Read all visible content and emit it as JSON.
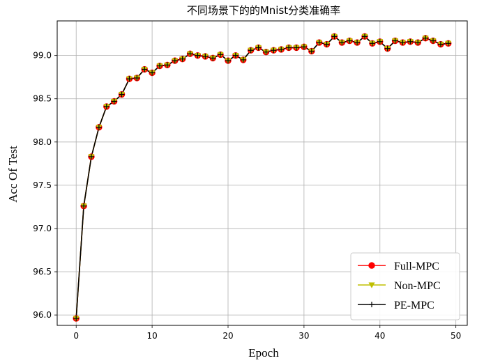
{
  "chart_data": {
    "type": "line",
    "title": "不同场景下的的Mnist分类准确率",
    "xlabel": "Epoch",
    "ylabel": "Acc Of Test",
    "xlim": [
      -2.5,
      51.5
    ],
    "ylim": [
      95.88,
      99.4
    ],
    "xticks": [
      0,
      10,
      20,
      30,
      40,
      50
    ],
    "yticks": [
      96.0,
      96.5,
      97.0,
      97.5,
      98.0,
      98.5,
      99.0
    ],
    "xtick_labels": [
      "0",
      "10",
      "20",
      "30",
      "40",
      "50"
    ],
    "ytick_labels": [
      "96.0",
      "96.5",
      "97.0",
      "97.5",
      "98.0",
      "98.5",
      "99.0"
    ],
    "grid": true,
    "legend_position": "lower-right",
    "x": [
      0,
      1,
      2,
      3,
      4,
      5,
      6,
      7,
      8,
      9,
      10,
      11,
      12,
      13,
      14,
      15,
      16,
      17,
      18,
      19,
      20,
      21,
      22,
      23,
      24,
      25,
      26,
      27,
      28,
      29,
      30,
      31,
      32,
      33,
      34,
      35,
      36,
      37,
      38,
      39,
      40,
      41,
      42,
      43,
      44,
      45,
      46,
      47,
      48,
      49
    ],
    "series": [
      {
        "name": "Full-MPC",
        "color": "#ff0000",
        "marker": "circle",
        "values": [
          95.96,
          97.26,
          97.83,
          98.17,
          98.41,
          98.47,
          98.55,
          98.73,
          98.74,
          98.84,
          98.8,
          98.88,
          98.89,
          98.94,
          98.96,
          99.02,
          99.0,
          98.99,
          98.97,
          99.01,
          98.94,
          99.0,
          98.95,
          99.06,
          99.09,
          99.04,
          99.06,
          99.07,
          99.09,
          99.09,
          99.1,
          99.05,
          99.15,
          99.13,
          99.22,
          99.15,
          99.17,
          99.15,
          99.22,
          99.14,
          99.16,
          99.08,
          99.17,
          99.15,
          99.16,
          99.15,
          99.2,
          99.17,
          99.13,
          99.14
        ]
      },
      {
        "name": "Non-MPC",
        "color": "#bfbf00",
        "marker": "triangle-down",
        "values": [
          95.96,
          97.26,
          97.83,
          98.17,
          98.41,
          98.47,
          98.55,
          98.73,
          98.74,
          98.84,
          98.8,
          98.88,
          98.89,
          98.94,
          98.96,
          99.02,
          99.0,
          98.99,
          98.97,
          99.01,
          98.94,
          99.0,
          98.95,
          99.06,
          99.09,
          99.04,
          99.06,
          99.07,
          99.09,
          99.09,
          99.1,
          99.05,
          99.15,
          99.13,
          99.22,
          99.15,
          99.17,
          99.15,
          99.22,
          99.14,
          99.16,
          99.08,
          99.17,
          99.15,
          99.16,
          99.15,
          99.2,
          99.17,
          99.13,
          99.14
        ]
      },
      {
        "name": "PE-MPC",
        "color": "#000000",
        "marker": "plus",
        "values": [
          95.96,
          97.26,
          97.83,
          98.17,
          98.41,
          98.47,
          98.55,
          98.73,
          98.74,
          98.84,
          98.8,
          98.88,
          98.89,
          98.94,
          98.96,
          99.02,
          99.0,
          98.99,
          98.97,
          99.01,
          98.94,
          99.0,
          98.95,
          99.06,
          99.09,
          99.04,
          99.06,
          99.07,
          99.09,
          99.09,
          99.1,
          99.05,
          99.15,
          99.13,
          99.22,
          99.15,
          99.17,
          99.15,
          99.22,
          99.14,
          99.16,
          99.08,
          99.17,
          99.15,
          99.16,
          99.15,
          99.2,
          99.17,
          99.13,
          99.14
        ]
      }
    ]
  }
}
